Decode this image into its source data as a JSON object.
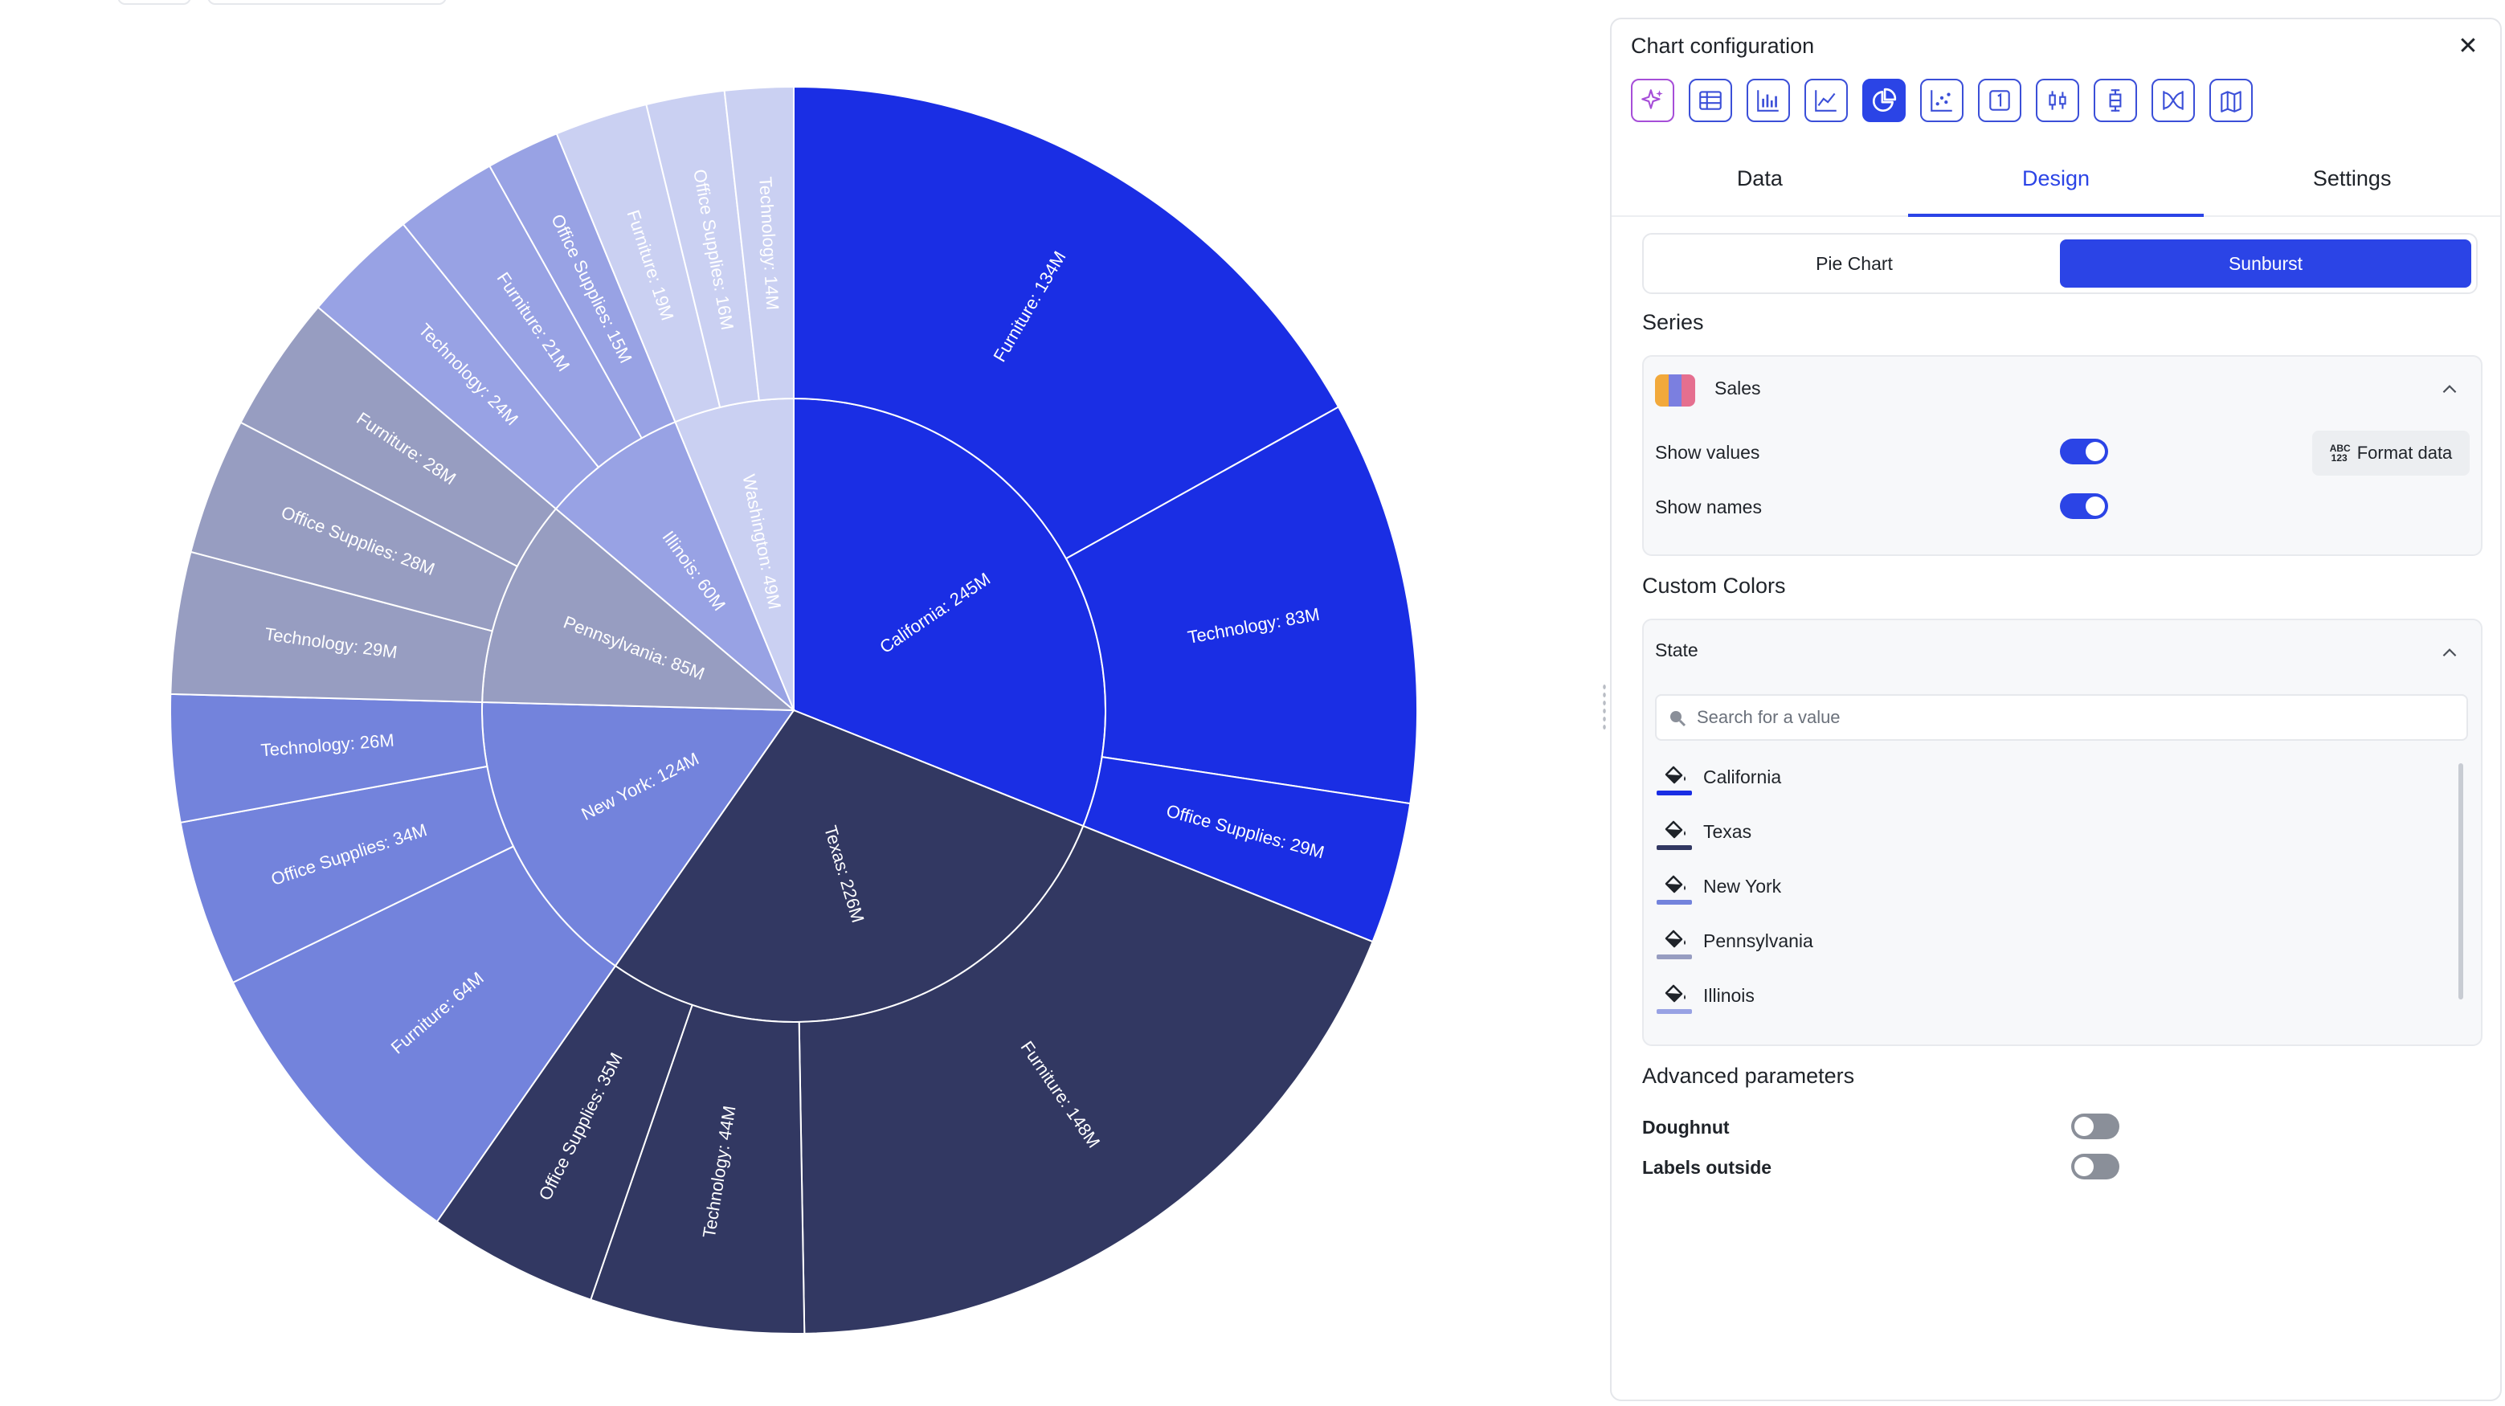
{
  "chart_data": {
    "type": "sunburst",
    "title": "",
    "series_name": "Sales",
    "states": [
      {
        "name": "California",
        "label": "California: 245M",
        "value": 245,
        "color": "#1a2ee4",
        "children": [
          {
            "name": "Furniture",
            "label": "Furniture: 134M",
            "value": 134
          },
          {
            "name": "Technology",
            "label": "Technology: 83M",
            "value": 83
          },
          {
            "name": "Office Supplies",
            "label": "Office Supplies: 29M",
            "value": 29
          }
        ]
      },
      {
        "name": "Texas",
        "label": "Texas: 226M",
        "value": 226,
        "color": "#323862",
        "children": [
          {
            "name": "Furniture",
            "label": "Furniture: 148M",
            "value": 148
          },
          {
            "name": "Technology",
            "label": "Technology: 44M",
            "value": 44
          },
          {
            "name": "Office Supplies",
            "label": "Office Supplies: 35M",
            "value": 35
          }
        ]
      },
      {
        "name": "New York",
        "label": "New York: 124M",
        "value": 124,
        "color": "#7383dc",
        "children": [
          {
            "name": "Furniture",
            "label": "Furniture: 64M",
            "value": 64
          },
          {
            "name": "Office Supplies",
            "label": "Office Supplies: 34M",
            "value": 34
          },
          {
            "name": "Technology",
            "label": "Technology: 26M",
            "value": 26
          }
        ]
      },
      {
        "name": "Pennsylvania",
        "label": "Pennsylvania: 85M",
        "value": 85,
        "color": "#979dc1",
        "children": [
          {
            "name": "Technology",
            "label": "Technology: 29M",
            "value": 29
          },
          {
            "name": "Office Supplies",
            "label": "Office Supplies: 28M",
            "value": 28
          },
          {
            "name": "Furniture",
            "label": "Furniture: 28M",
            "value": 28
          }
        ]
      },
      {
        "name": "Illinois",
        "label": "Illinois: 60M",
        "value": 60,
        "color": "#98a2e4",
        "children": [
          {
            "name": "Technology",
            "label": "Technology: 24M",
            "value": 24
          },
          {
            "name": "Furniture",
            "label": "Furniture: 21M",
            "value": 21
          },
          {
            "name": "Office Supplies",
            "label": "Office Supplies: 15M",
            "value": 15
          }
        ]
      },
      {
        "name": "Washington",
        "label": "Washington: 49M",
        "value": 49,
        "color": "#cad0f2",
        "children": [
          {
            "name": "Furniture",
            "label": "Furniture: 19M",
            "value": 19
          },
          {
            "name": "Office Supplies",
            "label": "Office Supplies: 16M",
            "value": 16
          },
          {
            "name": "Technology",
            "label": "Technology: 14M",
            "value": 14
          }
        ]
      }
    ]
  },
  "panel": {
    "title": "Chart configuration",
    "close_icon": "close-icon",
    "chart_types": [
      {
        "icon": "ai-sparkle-icon"
      },
      {
        "icon": "table-icon"
      },
      {
        "icon": "bar-chart-icon"
      },
      {
        "icon": "line-chart-icon"
      },
      {
        "icon": "pie-chart-icon",
        "active": true
      },
      {
        "icon": "scatter-chart-icon"
      },
      {
        "icon": "number-kpi-icon"
      },
      {
        "icon": "candlestick-icon"
      },
      {
        "icon": "boxplot-icon"
      },
      {
        "icon": "sankey-icon"
      },
      {
        "icon": "map-icon"
      }
    ],
    "tabs": [
      {
        "label": "Data"
      },
      {
        "label": "Design",
        "active": true
      },
      {
        "label": "Settings"
      }
    ],
    "subtype": {
      "pie": "Pie Chart",
      "sunburst": "Sunburst",
      "selected": "Sunburst"
    },
    "series_section": {
      "title": "Series",
      "series_name": "Sales",
      "swatch_colors": [
        "#f2a93b",
        "#7b7fe0",
        "#e56f8f"
      ],
      "show_values_label": "Show values",
      "show_values": true,
      "show_names_label": "Show names",
      "show_names": true,
      "format_button": "Format data",
      "format_icon_text": "ABC 123"
    },
    "custom_colors": {
      "title": "Custom Colors",
      "field": "State",
      "search_placeholder": "Search for a value",
      "items": [
        {
          "name": "California",
          "color": "#1a2ee4"
        },
        {
          "name": "Texas",
          "color": "#323862"
        },
        {
          "name": "New York",
          "color": "#7383dc"
        },
        {
          "name": "Pennsylvania",
          "color": "#979dc1"
        },
        {
          "name": "Illinois",
          "color": "#98a2e4"
        }
      ]
    },
    "advanced": {
      "title": "Advanced parameters",
      "doughnut_label": "Doughnut",
      "doughnut": false,
      "labels_outside_label": "Labels outside",
      "labels_outside": false
    }
  }
}
